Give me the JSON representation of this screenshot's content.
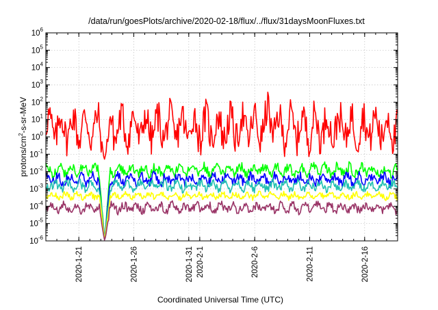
{
  "chart_data": {
    "type": "line",
    "title": "/data/run/goesPlots/archive/2020-02-18/flux/../flux/31daysMoonFluxes.txt",
    "xlabel": "Coordinated Universal Time (UTC)",
    "ylabel": "protons/cm2-s-sr-MeV",
    "y_scale": "log",
    "ylim": [
      1e-06,
      1000000.0
    ],
    "y_ticks": [
      {
        "base": "10",
        "exp": "-6"
      },
      {
        "base": "10",
        "exp": "-5"
      },
      {
        "base": "10",
        "exp": "-4"
      },
      {
        "base": "10",
        "exp": "-3"
      },
      {
        "base": "10",
        "exp": "-2"
      },
      {
        "base": "10",
        "exp": "-1"
      },
      {
        "base": "10",
        "exp": "0"
      },
      {
        "base": "10",
        "exp": "1"
      },
      {
        "base": "10",
        "exp": "2"
      },
      {
        "base": "10",
        "exp": "3"
      },
      {
        "base": "10",
        "exp": "4"
      },
      {
        "base": "10",
        "exp": "5"
      },
      {
        "base": "10",
        "exp": "6"
      }
    ],
    "xlim": [
      "2020-01-18",
      "2020-02-19"
    ],
    "x_ticks": [
      "2020-1-21",
      "2020-1-26",
      "2020-1-31",
      "2020-2-1",
      "2020-2-6",
      "2020-2-11",
      "2020-2-16"
    ],
    "grid": true,
    "series": [
      {
        "color": "#ff0000",
        "baseline": 3.5,
        "spread": 1.2,
        "dip": [
          {
            "x": "2020-01-23",
            "value": 0.05
          }
        ],
        "values_summary": "oscillates ~0.5 to ~20, spike ~50 near 2020-02-07"
      },
      {
        "color": "#00ff00",
        "baseline": 0.012,
        "spread": 0.35,
        "dip": [
          {
            "x": "2020-01-23",
            "value": 1e-06
          }
        ]
      },
      {
        "color": "#0000ff",
        "baseline": 0.0035,
        "spread": 0.35,
        "dip": [
          {
            "x": "2020-01-23",
            "value": 1e-06
          }
        ]
      },
      {
        "color": "#20c0b0",
        "baseline": 0.0015,
        "spread": 0.3,
        "dip": [
          {
            "x": "2020-01-23",
            "value": 1e-06
          }
        ]
      },
      {
        "color": "#ffff00",
        "baseline": 0.0004,
        "spread": 0.2,
        "dip": [
          {
            "x": "2020-01-23",
            "value": 1e-06
          }
        ]
      },
      {
        "color": "#993366",
        "baseline": 8e-05,
        "spread": 0.3,
        "dip": [
          {
            "x": "2020-01-23",
            "value": 1e-06
          }
        ]
      }
    ]
  }
}
